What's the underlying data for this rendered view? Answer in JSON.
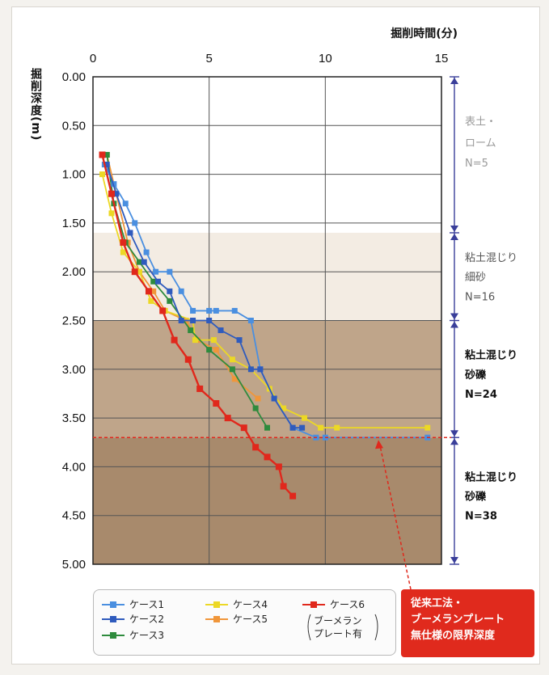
{
  "chart_data": {
    "type": "line",
    "xlabel": "掘削時間(分)",
    "ylabel": "掘削深度(m)",
    "xlim": [
      0,
      15
    ],
    "ylim": [
      0,
      5
    ],
    "x_ticks": [
      "0",
      "5",
      "10",
      "15"
    ],
    "y_ticks": [
      "0.00",
      "0.50",
      "1.00",
      "1.50",
      "2.00",
      "2.50",
      "3.00",
      "3.50",
      "4.00",
      "4.50",
      "5.00"
    ],
    "grid": true,
    "legend_position": "bottom",
    "limit_depth": 3.7,
    "layers": [
      {
        "top": 0.0,
        "bottom": 1.6,
        "lines": [
          "表土・",
          "ローム",
          "N=5"
        ],
        "text_color": "#9a9a9a",
        "fill": "#ffffff"
      },
      {
        "top": 1.6,
        "bottom": 2.5,
        "lines": [
          "粘土混じり",
          "細砂",
          "N=16"
        ],
        "text_color": "#555555",
        "fill": "#f3ece3"
      },
      {
        "top": 2.5,
        "bottom": 3.7,
        "lines": [
          "粘土混じり",
          "砂礫",
          "N=24"
        ],
        "text_color": "#111111",
        "fill": "#bfa58a"
      },
      {
        "top": 3.7,
        "bottom": 5.0,
        "lines": [
          "粘土混じり",
          "砂礫",
          "N=38"
        ],
        "text_color": "#111111",
        "fill": "#a88a6c"
      }
    ],
    "series": [
      {
        "name": "ケース1",
        "color": "#4a8fe0",
        "points": [
          [
            0.5,
            0.9
          ],
          [
            0.9,
            1.1
          ],
          [
            1.4,
            1.3
          ],
          [
            1.8,
            1.5
          ],
          [
            2.3,
            1.8
          ],
          [
            2.7,
            2.0
          ],
          [
            3.3,
            2.0
          ],
          [
            3.8,
            2.2
          ],
          [
            4.3,
            2.4
          ],
          [
            5.0,
            2.4
          ],
          [
            5.3,
            2.4
          ],
          [
            6.1,
            2.4
          ],
          [
            6.8,
            2.5
          ],
          [
            7.2,
            3.0
          ],
          [
            7.8,
            3.3
          ],
          [
            8.6,
            3.6
          ],
          [
            9.6,
            3.7
          ],
          [
            10.0,
            3.7
          ],
          [
            14.4,
            3.7
          ]
        ]
      },
      {
        "name": "ケース2",
        "color": "#2f5bbd",
        "points": [
          [
            0.6,
            0.9
          ],
          [
            1.0,
            1.2
          ],
          [
            1.6,
            1.6
          ],
          [
            2.2,
            1.9
          ],
          [
            2.8,
            2.1
          ],
          [
            3.3,
            2.2
          ],
          [
            3.8,
            2.5
          ],
          [
            4.3,
            2.5
          ],
          [
            5.0,
            2.5
          ],
          [
            5.5,
            2.6
          ],
          [
            6.3,
            2.7
          ],
          [
            6.8,
            3.0
          ],
          [
            7.2,
            3.0
          ],
          [
            7.8,
            3.3
          ],
          [
            8.6,
            3.6
          ],
          [
            9.0,
            3.6
          ]
        ]
      },
      {
        "name": "ケース3",
        "color": "#2e8b3d",
        "points": [
          [
            0.6,
            0.8
          ],
          [
            0.9,
            1.3
          ],
          [
            1.4,
            1.7
          ],
          [
            2.0,
            1.9
          ],
          [
            2.6,
            2.1
          ],
          [
            3.3,
            2.3
          ],
          [
            4.2,
            2.6
          ],
          [
            5.0,
            2.8
          ],
          [
            6.0,
            3.0
          ],
          [
            7.0,
            3.4
          ],
          [
            7.5,
            3.6
          ]
        ]
      },
      {
        "name": "ケース4",
        "color": "#ecd825",
        "points": [
          [
            0.4,
            1.0
          ],
          [
            0.8,
            1.4
          ],
          [
            1.3,
            1.8
          ],
          [
            2.0,
            2.0
          ],
          [
            2.5,
            2.3
          ],
          [
            3.1,
            2.4
          ],
          [
            4.3,
            2.5
          ],
          [
            4.4,
            2.7
          ],
          [
            5.2,
            2.7
          ],
          [
            6.0,
            2.9
          ],
          [
            6.8,
            3.0
          ],
          [
            7.6,
            3.2
          ],
          [
            8.2,
            3.4
          ],
          [
            9.1,
            3.5
          ],
          [
            9.8,
            3.6
          ],
          [
            10.5,
            3.6
          ],
          [
            14.4,
            3.6
          ]
        ]
      },
      {
        "name": "ケース5",
        "color": "#f0963a",
        "points": [
          [
            0.6,
            0.8
          ],
          [
            1.0,
            1.2
          ],
          [
            1.5,
            1.7
          ],
          [
            2.0,
            2.0
          ],
          [
            2.6,
            2.2
          ],
          [
            3.1,
            2.4
          ],
          [
            4.0,
            2.5
          ],
          [
            4.5,
            2.7
          ],
          [
            5.3,
            2.8
          ],
          [
            6.1,
            3.1
          ],
          [
            7.1,
            3.3
          ]
        ]
      },
      {
        "name": "ケース6",
        "color": "#e0281c",
        "points": [
          [
            0.4,
            0.8
          ],
          [
            0.8,
            1.2
          ],
          [
            1.3,
            1.7
          ],
          [
            1.8,
            2.0
          ],
          [
            2.4,
            2.2
          ],
          [
            3.0,
            2.4
          ],
          [
            3.5,
            2.7
          ],
          [
            4.1,
            2.9
          ],
          [
            4.6,
            3.2
          ],
          [
            5.3,
            3.35
          ],
          [
            5.8,
            3.5
          ],
          [
            6.5,
            3.6
          ],
          [
            7.0,
            3.8
          ],
          [
            7.5,
            3.9
          ],
          [
            8.0,
            4.0
          ],
          [
            8.2,
            4.2
          ],
          [
            8.6,
            4.3
          ]
        ]
      }
    ]
  },
  "legend": {
    "items": [
      "ケース1",
      "ケース2",
      "ケース3",
      "ケース4",
      "ケース5",
      "ケース6"
    ],
    "case6_note_line1": "ブーメラン",
    "case6_note_line2": "プレート有"
  },
  "annotation": {
    "line1": "従来工法・",
    "line2": "ブーメランプレート",
    "line3": "無仕様の限界深度"
  }
}
